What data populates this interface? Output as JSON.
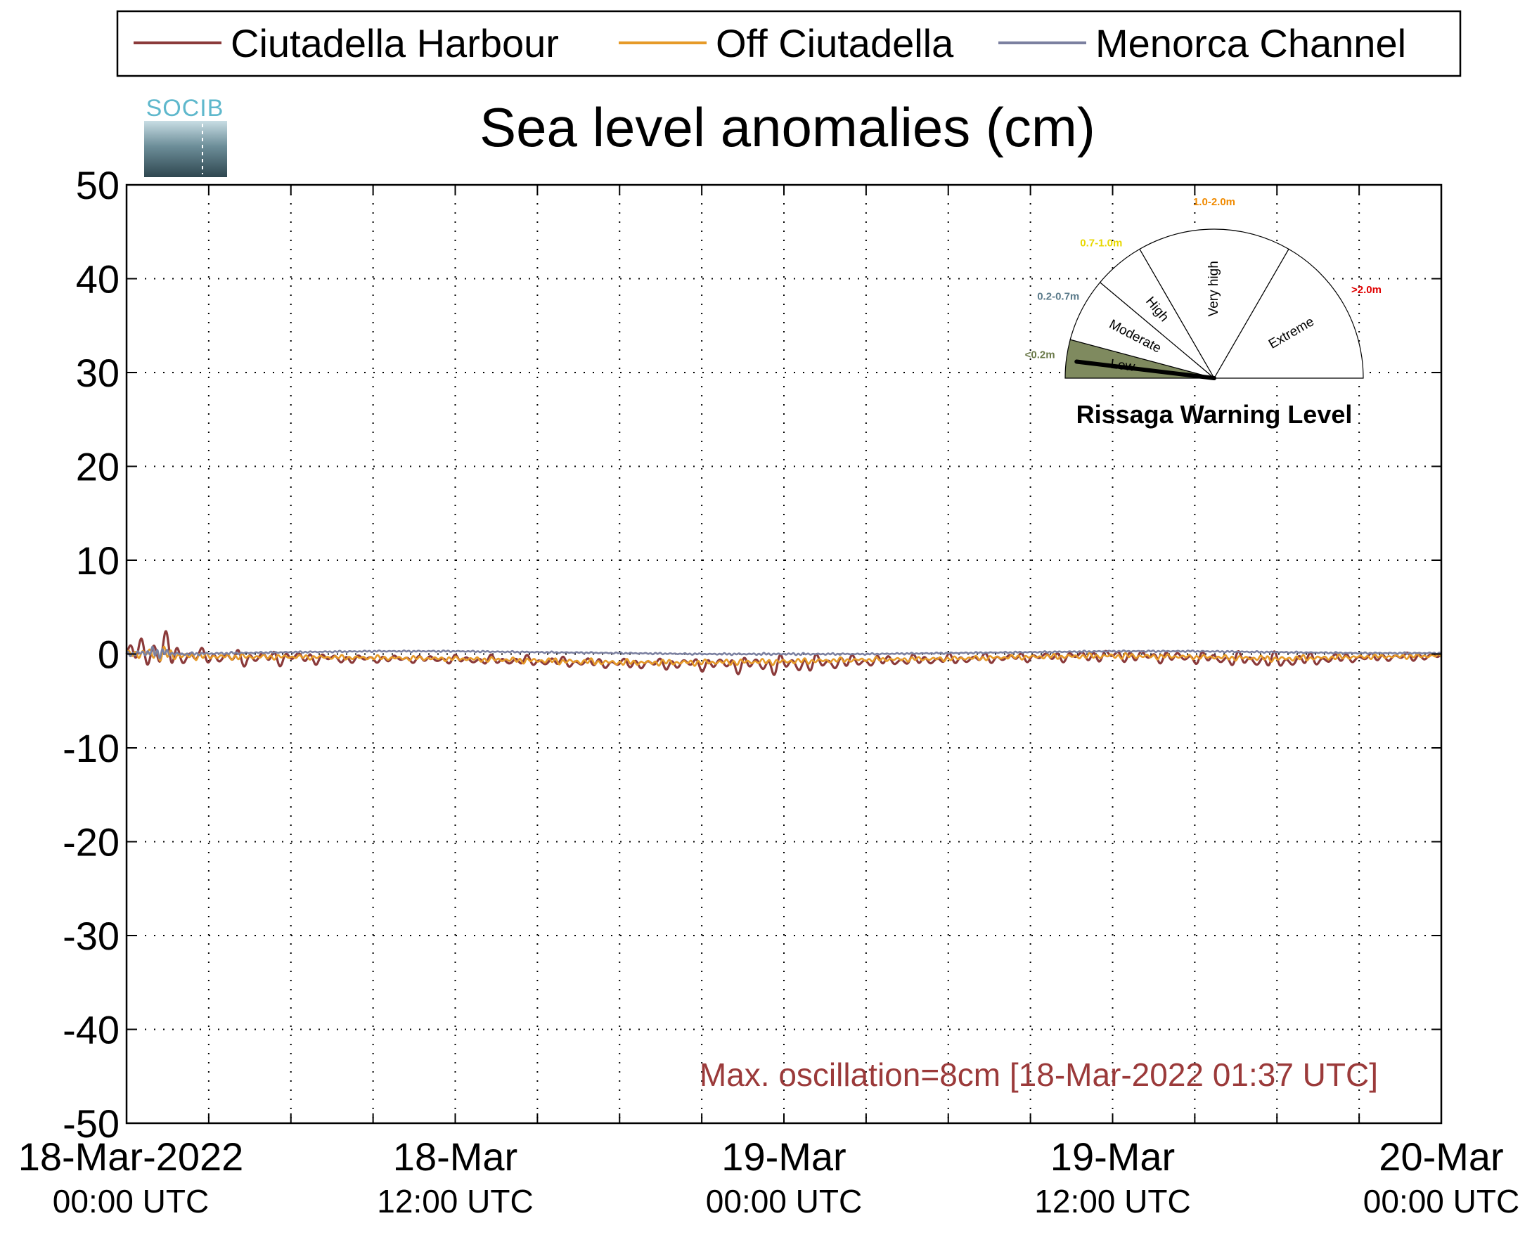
{
  "chart_data": {
    "type": "line",
    "title": "Sea level anomalies (cm)",
    "xlabel": "",
    "ylabel": "",
    "ylim": [
      -50,
      50
    ],
    "yticks": [
      "50",
      "40",
      "30",
      "20",
      "10",
      "0",
      "-10",
      "-20",
      "-30",
      "-40",
      "-50"
    ],
    "ytick_values": [
      50,
      40,
      30,
      20,
      10,
      0,
      -10,
      -20,
      -30,
      -40,
      -50
    ],
    "xlim": [
      "2022-03-18T00:00",
      "2022-03-20T00:00"
    ],
    "xticks": [
      {
        "line1": "18-Mar-2022",
        "line2": "00:00 UTC",
        "at": "2022-03-18T00:00"
      },
      {
        "line1": "18-Mar",
        "line2": "12:00 UTC",
        "at": "2022-03-18T12:00"
      },
      {
        "line1": "19-Mar",
        "line2": "00:00 UTC",
        "at": "2022-03-19T00:00"
      },
      {
        "line1": "19-Mar",
        "line2": "12:00 UTC",
        "at": "2022-03-19T12:00"
      },
      {
        "line1": "20-Mar",
        "line2": "00:00 UTC",
        "at": "2022-03-20T00:00"
      }
    ],
    "grid": true,
    "legend_placement": "top",
    "series": [
      {
        "name": "Ciutadella Harbour",
        "color": "#8b3a3a",
        "x": [
          "2022-03-18T00:00",
          "2022-03-18T01:00",
          "2022-03-18T02:00",
          "2022-03-18T03:00",
          "2022-03-18T04:00",
          "2022-03-18T06:00",
          "2022-03-18T08:00",
          "2022-03-18T10:00",
          "2022-03-18T12:00",
          "2022-03-18T15:00",
          "2022-03-18T18:00",
          "2022-03-18T21:00",
          "2022-03-19T00:00",
          "2022-03-19T03:00",
          "2022-03-19T06:00",
          "2022-03-19T09:00",
          "2022-03-19T12:00",
          "2022-03-19T15:00",
          "2022-03-19T18:00",
          "2022-03-19T21:00",
          "2022-03-20T00:00"
        ],
        "y": [
          0,
          0.4,
          -0.2,
          -0.3,
          -0.4,
          -0.3,
          -0.5,
          -0.5,
          -0.6,
          -0.8,
          -1.0,
          -1.0,
          -1.1,
          -0.8,
          -0.6,
          -0.3,
          -0.1,
          -0.4,
          -0.8,
          -0.4,
          -0.2
        ],
        "amplitude": [
          0.8,
          3.5,
          1.5,
          0.9,
          1.1,
          1.0,
          0.6,
          0.5,
          0.6,
          0.7,
          0.7,
          0.9,
          1.4,
          0.8,
          0.7,
          0.6,
          0.9,
          0.8,
          1.1,
          0.6,
          0.6
        ]
      },
      {
        "name": "Off Ciutadella",
        "color": "#e69a28",
        "x": [
          "2022-03-18T00:00",
          "2022-03-18T01:00",
          "2022-03-18T02:00",
          "2022-03-18T04:00",
          "2022-03-18T06:00",
          "2022-03-18T09:00",
          "2022-03-18T12:00",
          "2022-03-18T15:00",
          "2022-03-18T18:00",
          "2022-03-18T21:00",
          "2022-03-19T00:00",
          "2022-03-19T03:00",
          "2022-03-19T06:00",
          "2022-03-19T09:00",
          "2022-03-19T12:00",
          "2022-03-19T15:00",
          "2022-03-19T18:00",
          "2022-03-19T21:00",
          "2022-03-20T00:00"
        ],
        "y": [
          0,
          0.1,
          -0.2,
          -0.3,
          -0.3,
          -0.4,
          -0.5,
          -0.7,
          -0.9,
          -0.9,
          -0.8,
          -0.6,
          -0.5,
          -0.3,
          -0.2,
          -0.3,
          -0.5,
          -0.3,
          -0.2
        ],
        "amplitude": [
          0.3,
          1.2,
          0.5,
          0.4,
          0.3,
          0.3,
          0.3,
          0.4,
          0.4,
          0.4,
          0.4,
          0.3,
          0.3,
          0.3,
          0.4,
          0.3,
          0.4,
          0.3,
          0.3
        ]
      },
      {
        "name": "Menorca Channel",
        "color": "#7b80a0",
        "x": [
          "2022-03-18T00:00",
          "2022-03-18T01:00",
          "2022-03-18T02:00",
          "2022-03-18T04:00",
          "2022-03-18T06:00",
          "2022-03-18T09:00",
          "2022-03-18T12:00",
          "2022-03-18T15:00",
          "2022-03-18T18:00",
          "2022-03-18T21:00",
          "2022-03-19T00:00",
          "2022-03-19T03:00",
          "2022-03-19T06:00",
          "2022-03-19T09:00",
          "2022-03-19T12:00",
          "2022-03-19T15:00",
          "2022-03-19T18:00",
          "2022-03-19T21:00",
          "2022-03-20T00:00"
        ],
        "y": [
          0,
          0.2,
          0,
          0.1,
          0.2,
          0.3,
          0.3,
          0.2,
          0.1,
          0.0,
          0.0,
          0.0,
          0.1,
          0.2,
          0.3,
          0.3,
          0.2,
          0.1,
          0.1
        ],
        "amplitude": [
          0.3,
          0.8,
          0.2,
          0.15,
          0.1,
          0.1,
          0.1,
          0.1,
          0.1,
          0.1,
          0.15,
          0.1,
          0.1,
          0.1,
          0.1,
          0.1,
          0.1,
          0.1,
          0.1
        ]
      }
    ],
    "annotation": {
      "text": "Max. oscillation=8cm [18-Mar-2022 01:37 UTC]",
      "color": "#9b3a3a"
    }
  },
  "logo": {
    "text": "SOCIB",
    "color": "#5fb8cc"
  },
  "gauge": {
    "title": "Rissaga Warning Level",
    "categories": [
      {
        "label": "Low",
        "range": "<0.2m",
        "range_color": "#6b7a4a",
        "fill": "#7f8a5f",
        "active": true
      },
      {
        "label": "Moderate",
        "range": "0.2-0.7m",
        "range_color": "#5a7a8a",
        "fill": "#ffffff",
        "active": false
      },
      {
        "label": "High",
        "range": "0.7-1.0m",
        "range_color": "#e8d800",
        "fill": "#ffffff",
        "active": false
      },
      {
        "label": "Very high",
        "range": "1.0-2.0m",
        "range_color": "#f08a00",
        "fill": "#ffffff",
        "active": false
      },
      {
        "label": "Extreme",
        "range": ">2.0m",
        "range_color": "#e00000",
        "fill": "#ffffff",
        "active": false
      }
    ],
    "needle_level": 0.04
  }
}
